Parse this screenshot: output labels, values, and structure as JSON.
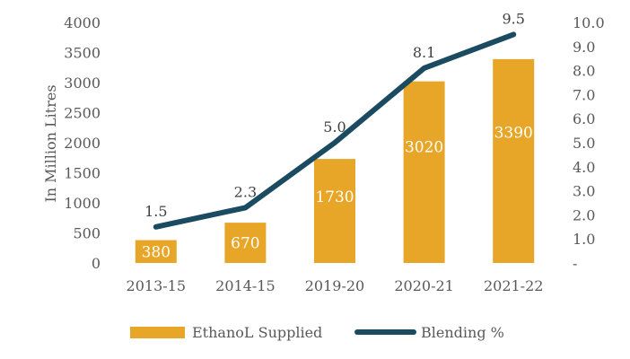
{
  "chart_data": {
    "type": "bar",
    "title": "",
    "categories": [
      "2013-15",
      "2014-15",
      "2019-20",
      "2020-21",
      "2021-22"
    ],
    "series": [
      {
        "name": "EthanoL Supplied",
        "type": "bar",
        "axis": "left",
        "values": [
          380,
          670,
          1730,
          3020,
          3390
        ],
        "labels": [
          "380",
          "670",
          "1730",
          "3020",
          "3390"
        ]
      },
      {
        "name": "Blending %",
        "type": "line",
        "axis": "right",
        "values": [
          1.5,
          2.3,
          5.0,
          8.1,
          9.5
        ],
        "labels": [
          "1.5",
          "2.3",
          "5.0",
          "8.1",
          "9.5"
        ]
      }
    ],
    "ylabel": "In Million Litres",
    "ylim": [
      0,
      4000
    ],
    "yticks": [
      "0",
      "500",
      "1000",
      "1500",
      "2000",
      "2500",
      "3000",
      "3500",
      "4000"
    ],
    "y2lim": [
      0,
      10
    ],
    "y2ticks": [
      "-",
      "1.0",
      "2.0",
      "3.0",
      "4.0",
      "5.0",
      "6.0",
      "7.0",
      "8.0",
      "9.0",
      "10.0"
    ],
    "grid": false,
    "legend_position": "bottom",
    "colors": {
      "bar": "#E8A628",
      "line": "#1B4B61"
    }
  }
}
